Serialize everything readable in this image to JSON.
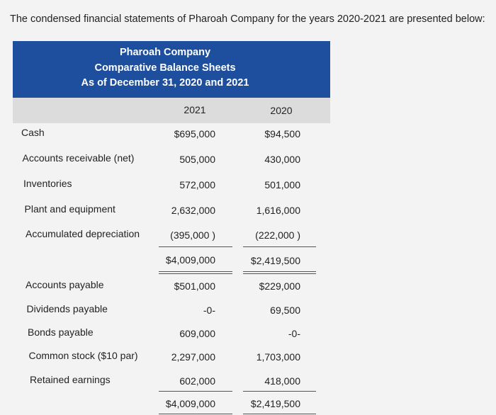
{
  "intro": "The condensed financial statements of Pharoah Company for the years 2020-2021 are presented below:",
  "table": {
    "title": [
      "Pharoah Company",
      "Comparative Balance Sheets",
      "As of December 31, 2020 and 2021"
    ],
    "columns": [
      "2021",
      "2020"
    ],
    "assets": [
      [
        "Cash",
        "$695,000",
        "$94,500"
      ],
      [
        "Accounts receivable (net)",
        "505,000",
        "430,000"
      ],
      [
        "Inventories",
        "572,000",
        "501,000"
      ],
      [
        "Plant and equipment",
        "2,632,000",
        "1,616,000"
      ],
      [
        "Accumulated depreciation",
        "(395,000 )",
        "(222,000 )"
      ]
    ],
    "assets_total": [
      "$4,009,000",
      "$2,419,500"
    ],
    "liabilities": [
      [
        "Accounts payable",
        "$501,000",
        "$229,000"
      ],
      [
        "Dividends payable",
        "-0-",
        "69,500"
      ],
      [
        "Bonds payable",
        "609,000",
        "-0-"
      ],
      [
        "Common stock ($10 par)",
        "2,297,000",
        "1,703,000"
      ],
      [
        "Retained earnings",
        "602,000",
        "418,000"
      ]
    ],
    "liabilities_total": [
      "$4,009,000",
      "$2,419,500"
    ]
  }
}
